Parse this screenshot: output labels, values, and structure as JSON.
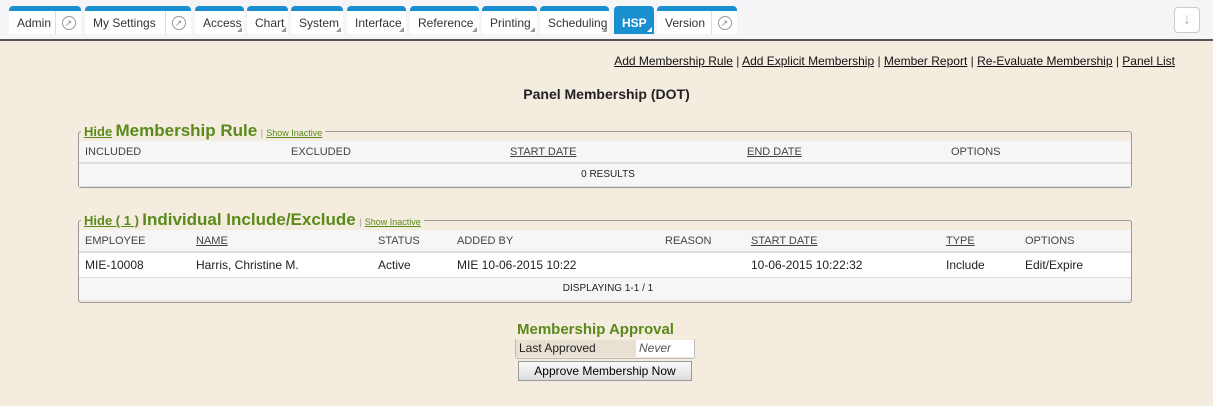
{
  "tabs": [
    {
      "label": "Admin",
      "ext": true
    },
    {
      "label": "My Settings",
      "ext": true
    },
    {
      "label": "Access"
    },
    {
      "label": "Chart"
    },
    {
      "label": "System"
    },
    {
      "label": "Interface"
    },
    {
      "label": "Reference"
    },
    {
      "label": "Printing"
    },
    {
      "label": "Scheduling"
    },
    {
      "label": "HSP",
      "active": true
    },
    {
      "label": "Version",
      "ext": true
    }
  ],
  "links": [
    "Add Membership Rule",
    "Add Explicit Membership",
    "Member Report",
    "Re-Evaluate Membership",
    "Panel List"
  ],
  "page_title": "Panel Membership (DOT)",
  "rule": {
    "hide": "Hide",
    "title": "Membership Rule",
    "show_inactive": "Show Inactive",
    "columns": [
      "INCLUDED",
      "EXCLUDED",
      "START DATE",
      "END DATE",
      "OPTIONS"
    ],
    "footer": "0 RESULTS"
  },
  "individual": {
    "hide": "Hide ( 1 )",
    "title": "Individual Include/Exclude",
    "show_inactive": "Show Inactive",
    "columns": [
      "EMPLOYEE",
      "NAME",
      "STATUS",
      "ADDED BY",
      "REASON",
      "START DATE",
      "TYPE",
      "OPTIONS"
    ],
    "rows": [
      [
        "MIE-10008",
        "Harris, Christine M.",
        "Active",
        "MIE 10-06-2015 10:22",
        "",
        "10-06-2015 10:22:32",
        "Include",
        "Edit/Expire"
      ]
    ],
    "footer": "DISPLAYING 1-1 / 1"
  },
  "approval": {
    "title": "Membership Approval",
    "label": "Last Approved",
    "value": "Never",
    "button": "Approve Membership Now"
  },
  "colors": {
    "accent": "#1a8fd0",
    "green": "#5a8a1a",
    "background": "#f4ecdf"
  }
}
